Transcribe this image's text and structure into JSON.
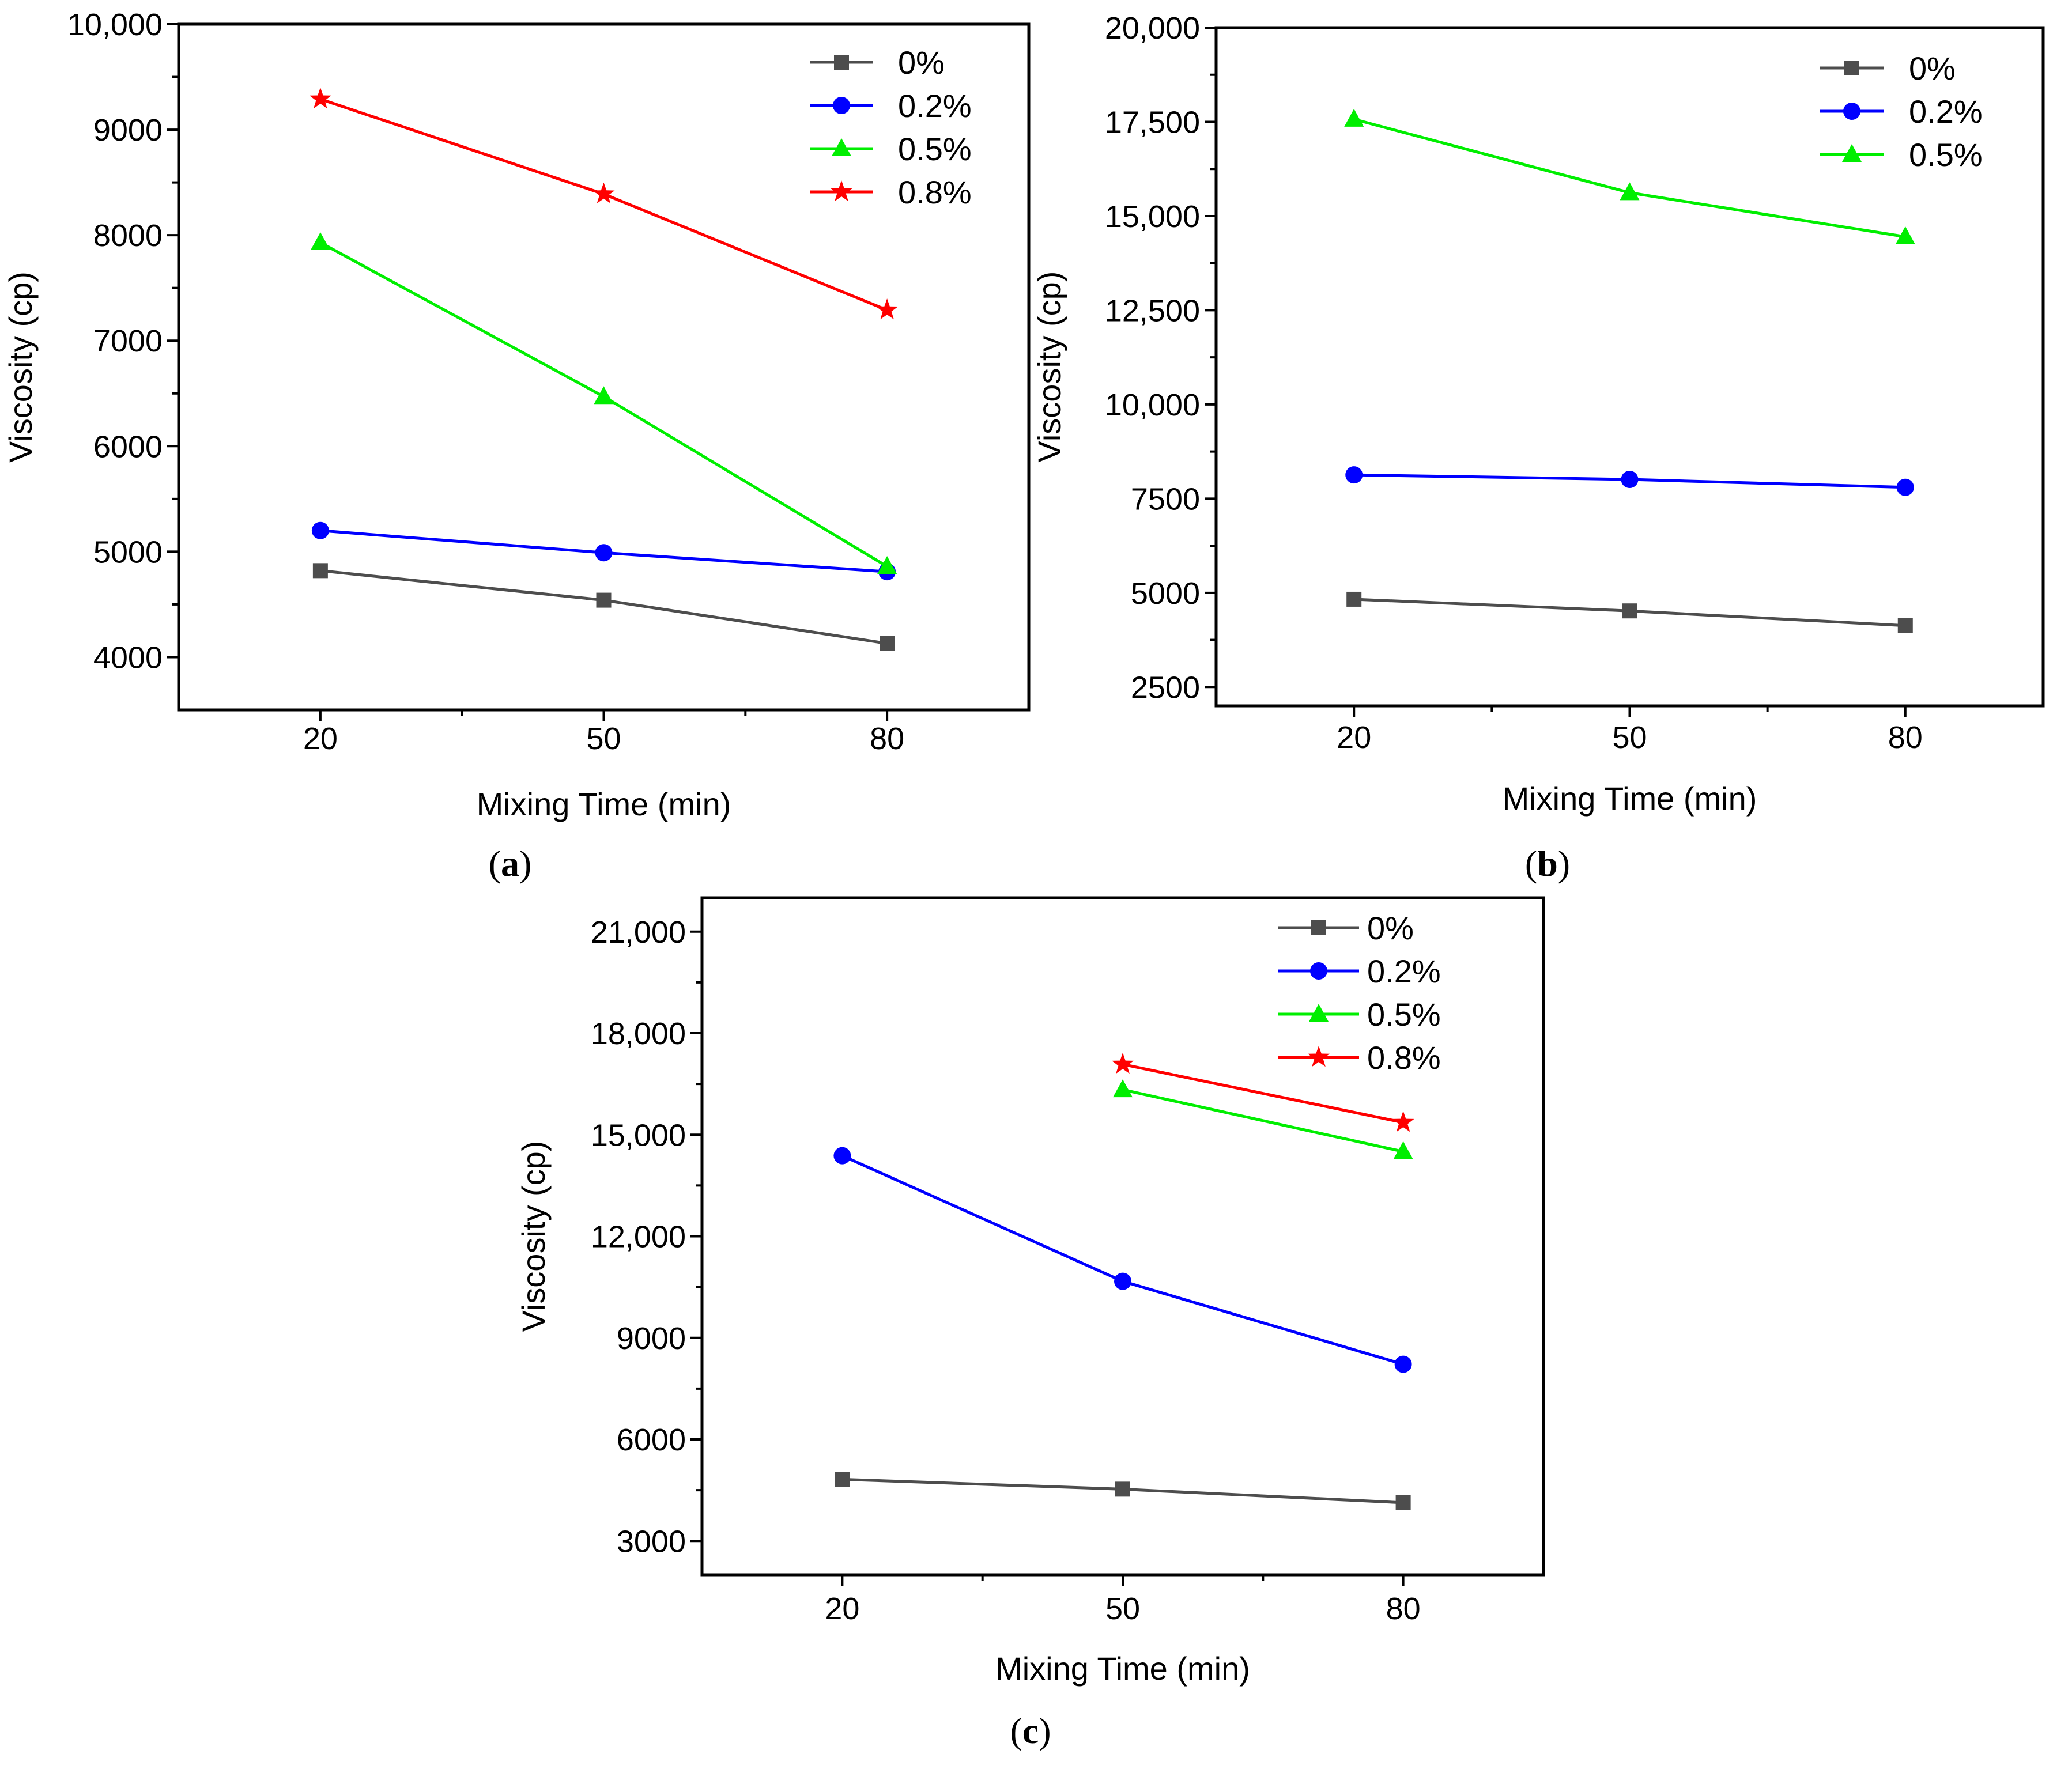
{
  "chart_data": [
    {
      "type": "line",
      "panel_label": "a",
      "xlabel": "Mixing Time (min)",
      "ylabel": "Viscosity (cp)",
      "x": [
        20,
        50,
        80
      ],
      "xticks": [
        "20",
        "50",
        "80"
      ],
      "ylim": [
        3500,
        10000
      ],
      "yticks": [
        4000,
        5000,
        6000,
        7000,
        8000,
        9000,
        10000
      ],
      "ytick_labels": [
        "4000",
        "5000",
        "6000",
        "7000",
        "8000",
        "9000",
        "10,000"
      ],
      "legend_position": "top-right",
      "series": [
        {
          "name": "0%",
          "color": "#4d4d4d",
          "marker": "square",
          "values": [
            4820,
            4540,
            4130
          ]
        },
        {
          "name": "0.2%",
          "color": "#0000ff",
          "marker": "circle",
          "values": [
            5200,
            4990,
            4810
          ]
        },
        {
          "name": "0.5%",
          "color": "#00ee00",
          "marker": "triangle",
          "values": [
            7930,
            6470,
            4860
          ]
        },
        {
          "name": "0.8%",
          "color": "#ff0000",
          "marker": "star",
          "values": [
            9290,
            8390,
            7290
          ]
        }
      ]
    },
    {
      "type": "line",
      "panel_label": "b",
      "xlabel": "Mixing Time (min)",
      "ylabel": "Viscosity (cp)",
      "x": [
        20,
        50,
        80
      ],
      "xticks": [
        "20",
        "50",
        "80"
      ],
      "ylim": [
        2000,
        20000
      ],
      "yticks": [
        2500,
        5000,
        7500,
        10000,
        12500,
        15000,
        17500,
        20000
      ],
      "ytick_labels": [
        "2500",
        "5000",
        "7500",
        "10,000",
        "12,500",
        "15,000",
        "17,500",
        "20,000"
      ],
      "legend_position": "top-right",
      "series": [
        {
          "name": "0%",
          "color": "#4d4d4d",
          "marker": "square",
          "values": [
            4830,
            4520,
            4130
          ]
        },
        {
          "name": "0.2%",
          "color": "#0000ff",
          "marker": "circle",
          "values": [
            8130,
            8010,
            7800
          ]
        },
        {
          "name": "0.5%",
          "color": "#00ee00",
          "marker": "triangle",
          "values": [
            17570,
            15620,
            14450
          ]
        }
      ]
    },
    {
      "type": "line",
      "panel_label": "c",
      "xlabel": "Mixing Time (min)",
      "ylabel": "Viscosity (cp)",
      "x": [
        20,
        50,
        80
      ],
      "xticks": [
        "20",
        "50",
        "80"
      ],
      "ylim": [
        2000,
        22000
      ],
      "yticks": [
        3000,
        6000,
        9000,
        12000,
        15000,
        18000,
        21000
      ],
      "ytick_labels": [
        "3000",
        "6000",
        "9000",
        "12,000",
        "15,000",
        "18,000",
        "21,000"
      ],
      "legend_position": "top-right",
      "series": [
        {
          "name": "0%",
          "color": "#4d4d4d",
          "marker": "square",
          "values": [
            4820,
            4530,
            4130
          ]
        },
        {
          "name": "0.2%",
          "color": "#0000ff",
          "marker": "circle",
          "values": [
            14380,
            10670,
            8220
          ]
        },
        {
          "name": "0.5%",
          "color": "#00ee00",
          "marker": "triangle",
          "values": [
            null,
            16330,
            14500
          ]
        },
        {
          "name": "0.8%",
          "color": "#ff0000",
          "marker": "star",
          "values": [
            null,
            17080,
            15360
          ]
        }
      ]
    }
  ]
}
